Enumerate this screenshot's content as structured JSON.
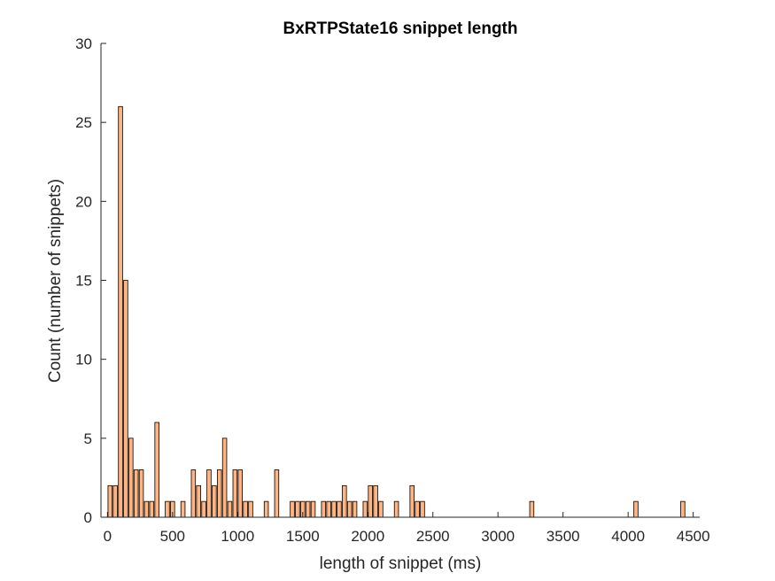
{
  "chart_data": {
    "type": "bar",
    "title": "BxRTPState16 snippet length",
    "xlabel": "length of snippet (ms)",
    "ylabel": "Count (number of snippets)",
    "xlim": [
      -50,
      4550
    ],
    "ylim": [
      0,
      30
    ],
    "xticks": [
      0,
      500,
      1000,
      1500,
      2000,
      2500,
      3000,
      3500,
      4000,
      4500
    ],
    "yticks": [
      0,
      5,
      10,
      15,
      20,
      25,
      30
    ],
    "bin_width": 40,
    "bar_color": "#FFB482",
    "grid": false,
    "x": [
      20,
      60,
      100,
      140,
      180,
      220,
      260,
      300,
      340,
      380,
      420,
      460,
      500,
      540,
      580,
      620,
      660,
      700,
      740,
      780,
      820,
      860,
      900,
      940,
      980,
      1020,
      1060,
      1100,
      1140,
      1180,
      1220,
      1260,
      1300,
      1340,
      1380,
      1420,
      1460,
      1500,
      1540,
      1580,
      1620,
      1660,
      1700,
      1740,
      1780,
      1820,
      1860,
      1900,
      1940,
      1980,
      2020,
      2060,
      2100,
      2140,
      2180,
      2220,
      2260,
      2300,
      2340,
      2380,
      2420,
      2460,
      2500,
      2540,
      2580,
      2620,
      2660,
      2700,
      2740,
      2780,
      2820,
      2860,
      2900,
      2940,
      2980,
      3020,
      3060,
      3100,
      3140,
      3180,
      3220,
      3260,
      3300,
      3340,
      3380,
      3420,
      3460,
      3500,
      3540,
      3580,
      3620,
      3660,
      3700,
      3740,
      3780,
      3820,
      3860,
      3900,
      3940,
      3980,
      4020,
      4060,
      4100,
      4140,
      4180,
      4220,
      4260,
      4300,
      4340,
      4380,
      4420
    ],
    "values": [
      2,
      2,
      26,
      15,
      5,
      3,
      3,
      1,
      1,
      6,
      0,
      1,
      1,
      0,
      1,
      0,
      3,
      2,
      1,
      3,
      2,
      3,
      5,
      1,
      3,
      3,
      1,
      1,
      0,
      0,
      1,
      0,
      3,
      0,
      0,
      1,
      1,
      1,
      1,
      1,
      0,
      1,
      1,
      1,
      1,
      2,
      1,
      1,
      0,
      1,
      2,
      2,
      1,
      0,
      0,
      1,
      0,
      0,
      2,
      1,
      1,
      0,
      0,
      0,
      0,
      0,
      0,
      0,
      0,
      0,
      0,
      0,
      0,
      0,
      0,
      0,
      0,
      0,
      0,
      0,
      0,
      1,
      0,
      0,
      0,
      0,
      0,
      0,
      0,
      0,
      0,
      0,
      0,
      0,
      0,
      0,
      0,
      0,
      0,
      0,
      0,
      1,
      0,
      0,
      0,
      0,
      0,
      0,
      0,
      0,
      1
    ]
  }
}
